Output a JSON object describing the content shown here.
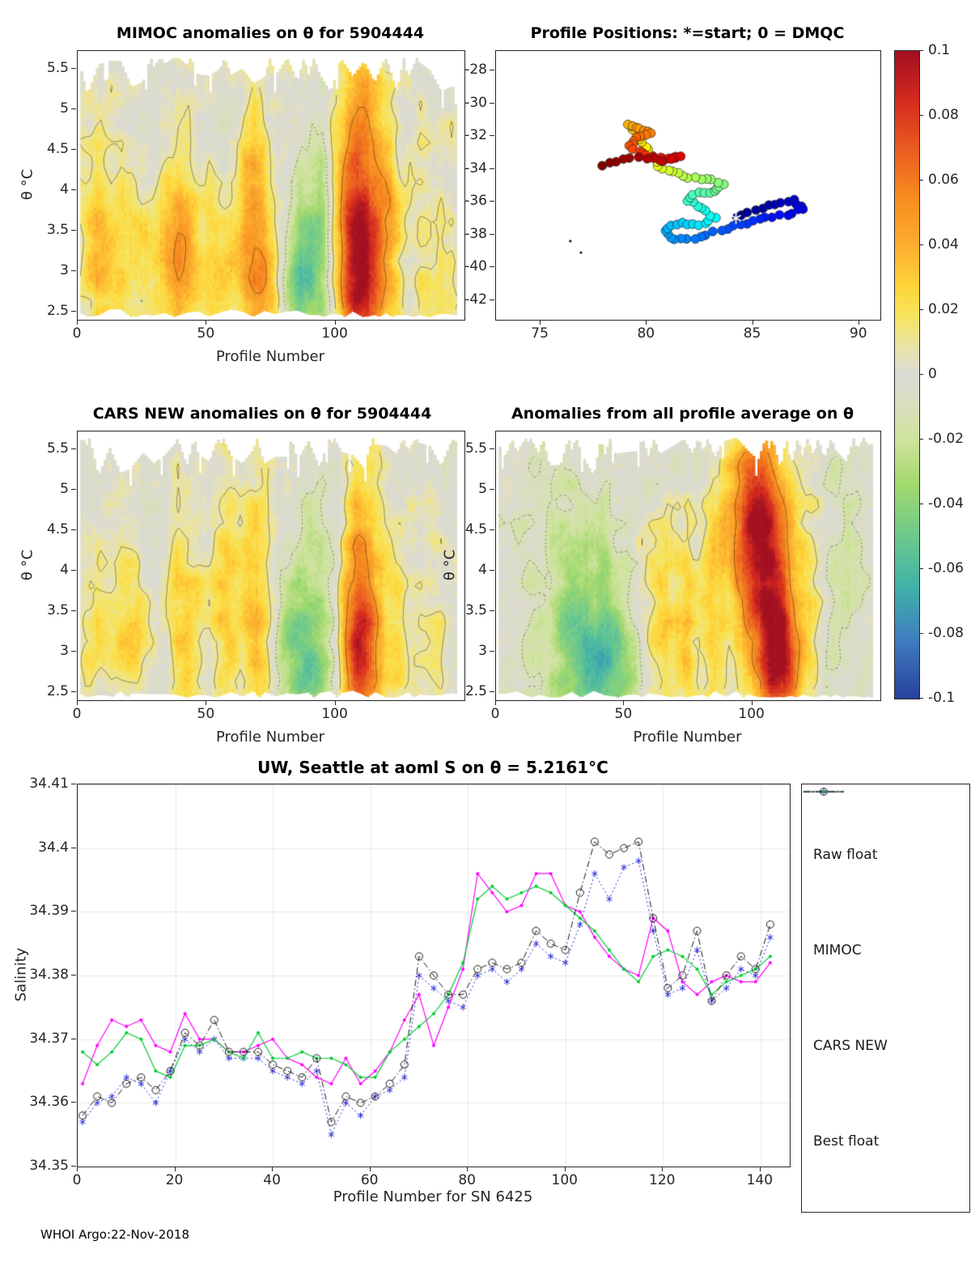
{
  "figure": {
    "footer": "WHOI Argo:22-Nov-2018",
    "background": "#ffffff"
  },
  "colorbar": {
    "min": -0.1,
    "max": 0.1,
    "tick_values": [
      0.1,
      0.08,
      0.06,
      0.04,
      0.02,
      0,
      -0.02,
      -0.04,
      -0.06,
      -0.08,
      -0.1
    ],
    "tick_labels": [
      "0.1",
      "0.08",
      "0.06",
      "0.04",
      "0.02",
      "0",
      "-0.02",
      "-0.04",
      "-0.06",
      "-0.08",
      "-0.1"
    ]
  },
  "colormap_stops": [
    [
      -0.1,
      "#27419b"
    ],
    [
      -0.082,
      "#3f7cc0"
    ],
    [
      -0.066,
      "#3fb1a9"
    ],
    [
      -0.05,
      "#6cc98d"
    ],
    [
      -0.034,
      "#a2d96d"
    ],
    [
      -0.02,
      "#cfe39c"
    ],
    [
      -0.008,
      "#dadec2"
    ],
    [
      0.0,
      "#dadad6"
    ],
    [
      0.008,
      "#e8e3ae"
    ],
    [
      0.018,
      "#f6e460"
    ],
    [
      0.027,
      "#fed63a"
    ],
    [
      0.04,
      "#fcae2f"
    ],
    [
      0.055,
      "#f78c1f"
    ],
    [
      0.07,
      "#ea5c20"
    ],
    [
      0.085,
      "#d42a1e"
    ],
    [
      0.1,
      "#a31021"
    ]
  ],
  "chart_data": [
    {
      "type": "heatmap",
      "title": "MIMOC anomalies on θ  for 5904444",
      "xlabel": "Profile Number",
      "ylabel": "θ °C",
      "xlim": [
        0,
        150
      ],
      "ylim": [
        2.4,
        5.72
      ],
      "zlim": [
        -0.1,
        0.1
      ],
      "x_range": [
        1,
        147
      ],
      "xticks": {
        "values": [
          0,
          50,
          100
        ],
        "labels": [
          "0",
          "50",
          "100"
        ]
      },
      "yticks": {
        "values": [
          2.5,
          3,
          3.5,
          4,
          4.5,
          5,
          5.5
        ],
        "labels": [
          "2.5",
          "3",
          "3.5",
          "4",
          "4.5",
          "5",
          "5.5"
        ]
      },
      "base": 0.004,
      "seed": 7,
      "noise_amp": 0.011,
      "col_amp": 0.006,
      "blobs": [
        [
          20,
          3.1,
          9,
          0.8,
          0.022
        ],
        [
          8,
          3.3,
          4,
          0.8,
          0.02
        ],
        [
          40,
          3.3,
          5,
          0.9,
          0.045
        ],
        [
          55,
          3.0,
          4,
          0.7,
          0.02
        ],
        [
          68,
          3.4,
          5,
          1.1,
          0.05
        ],
        [
          75,
          2.8,
          4,
          0.5,
          0.035
        ],
        [
          88,
          2.95,
          9,
          0.75,
          -0.052
        ],
        [
          95,
          4.2,
          6,
          0.9,
          -0.02
        ],
        [
          108,
          3.8,
          6,
          1.3,
          0.075
        ],
        [
          109,
          2.9,
          6,
          0.6,
          0.05
        ],
        [
          120,
          3.6,
          4,
          0.9,
          0.028
        ],
        [
          135,
          3.2,
          5,
          0.8,
          0.012
        ],
        [
          30,
          4.8,
          8,
          0.5,
          -0.012
        ],
        [
          60,
          5.0,
          10,
          0.5,
          -0.01
        ]
      ],
      "contour_solid": [
        0.012,
        0.05
      ],
      "contour_dotted": [
        -0.012
      ]
    },
    {
      "type": "scatter",
      "title": "Profile Positions: *=start; 0 = DMQC",
      "xlim": [
        72.9,
        91.0
      ],
      "ylim": [
        -43.2,
        -26.8
      ],
      "xticks": {
        "values": [
          75,
          80,
          85,
          90
        ],
        "labels": [
          "75",
          "80",
          "85",
          "90"
        ]
      },
      "yticks": {
        "values": [
          -28,
          -30,
          -32,
          -34,
          -36,
          -38,
          -40,
          -42
        ],
        "labels": [
          "-28",
          "-30",
          "-32",
          "-34",
          "-36",
          "-38",
          "-40",
          "-42"
        ]
      },
      "start_label": "*",
      "points_per_segment": 3,
      "marker_radius": 5.5,
      "seed": 5,
      "extra_marks": [
        [
          76.4,
          -38.4
        ],
        [
          76.9,
          -39.1
        ]
      ],
      "track": {
        "lon": [
          84.2,
          85.1,
          86.0,
          86.9,
          87.4,
          86.6,
          85.6,
          84.7,
          83.8,
          82.8,
          81.9,
          81.1,
          80.9,
          81.6,
          82.5,
          83.2,
          82.6,
          81.9,
          82.4,
          83.2,
          83.6,
          82.8,
          82.0,
          81.2,
          80.6,
          80.1,
          79.8,
          79.5,
          79.1,
          79.7,
          80.2,
          79.5,
          79.2,
          79.8,
          80.4,
          81.1,
          81.6,
          80.8,
          80.0,
          78.9,
          77.9
        ],
        "lat": [
          -37.0,
          -36.5,
          -36.1,
          -35.9,
          -36.4,
          -36.8,
          -37.0,
          -37.3,
          -37.6,
          -38.0,
          -38.3,
          -38.2,
          -37.6,
          -37.3,
          -37.4,
          -37.0,
          -36.4,
          -35.9,
          -35.4,
          -35.4,
          -34.9,
          -34.6,
          -34.5,
          -34.2,
          -33.8,
          -33.1,
          -32.4,
          -31.7,
          -31.3,
          -31.5,
          -31.8,
          -32.1,
          -32.6,
          -33.0,
          -33.3,
          -33.4,
          -33.2,
          -33.5,
          -33.3,
          -33.4,
          -33.8
        ]
      }
    },
    {
      "type": "heatmap",
      "title": "CARS NEW anomalies on θ for 5904444",
      "xlabel": "Profile Number",
      "ylabel": "θ °C",
      "xlim": [
        0,
        150
      ],
      "ylim": [
        2.4,
        5.72
      ],
      "zlim": [
        -0.1,
        0.1
      ],
      "x_range": [
        1,
        147
      ],
      "xticks": {
        "values": [
          0,
          50,
          100
        ],
        "labels": [
          "0",
          "50",
          "100"
        ]
      },
      "yticks": {
        "values": [
          2.5,
          3,
          3.5,
          4,
          4.5,
          5,
          5.5
        ],
        "labels": [
          "2.5",
          "3",
          "3.5",
          "4",
          "4.5",
          "5",
          "5.5"
        ]
      },
      "base": -0.002,
      "seed": 13,
      "noise_amp": 0.011,
      "col_amp": 0.006,
      "blobs": [
        [
          6,
          3.2,
          4,
          0.8,
          0.02
        ],
        [
          20,
          3.3,
          6,
          0.9,
          0.028
        ],
        [
          42,
          3.3,
          5,
          1.0,
          0.032
        ],
        [
          57,
          3.6,
          4,
          1.2,
          0.03
        ],
        [
          70,
          3.4,
          5,
          1.1,
          0.042
        ],
        [
          88,
          2.95,
          9,
          0.8,
          -0.05
        ],
        [
          100,
          4.5,
          8,
          0.8,
          -0.018
        ],
        [
          109,
          3.7,
          6,
          1.3,
          0.065
        ],
        [
          110,
          2.9,
          5,
          0.6,
          0.045
        ],
        [
          125,
          3.1,
          5,
          0.9,
          0.018
        ],
        [
          140,
          3.4,
          4,
          0.8,
          0.012
        ]
      ],
      "contour_solid": [
        0.012,
        0.05
      ],
      "contour_dotted": [
        -0.012
      ]
    },
    {
      "type": "heatmap",
      "title": "Anomalies from all profile average on θ",
      "xlabel": "Profile Number",
      "ylabel": "θ °C",
      "xlim": [
        0,
        150
      ],
      "ylim": [
        2.4,
        5.72
      ],
      "zlim": [
        -0.1,
        0.1
      ],
      "x_range": [
        1,
        147
      ],
      "xticks": {
        "values": [
          0,
          50,
          100
        ],
        "labels": [
          "0",
          "50",
          "100"
        ]
      },
      "yticks": {
        "values": [
          2.5,
          3,
          3.5,
          4,
          4.5,
          5,
          5.5
        ],
        "labels": [
          "2.5",
          "3",
          "3.5",
          "4",
          "4.5",
          "5",
          "5.5"
        ]
      },
      "base": -0.006,
      "seed": 29,
      "noise_amp": 0.012,
      "col_amp": 0.007,
      "blobs": [
        [
          30,
          3.4,
          9,
          1.0,
          -0.022
        ],
        [
          45,
          2.95,
          11,
          0.7,
          -0.045
        ],
        [
          58,
          3.4,
          5,
          1.0,
          0.025
        ],
        [
          66,
          3.2,
          4,
          0.9,
          0.032
        ],
        [
          75,
          3.3,
          4,
          1.0,
          0.03
        ],
        [
          85,
          3.6,
          4,
          1.3,
          0.028
        ],
        [
          98,
          4.6,
          7,
          0.9,
          0.04
        ],
        [
          104,
          4.8,
          7,
          0.8,
          0.05
        ],
        [
          107,
          3.3,
          7,
          1.1,
          0.07
        ],
        [
          112,
          2.9,
          5,
          0.6,
          0.055
        ],
        [
          122,
          3.8,
          4,
          1.2,
          0.02
        ],
        [
          135,
          4.0,
          6,
          1.5,
          -0.005
        ]
      ],
      "contour_solid": [
        0.012,
        0.05
      ],
      "contour_dotted": [
        -0.012
      ]
    },
    {
      "type": "line",
      "title": "UW, Seattle at aoml S on θ = 5.2161°C",
      "xlabel": "Profile Number for SN 6425",
      "ylabel": "Salinity",
      "xlim": [
        0,
        146
      ],
      "ylim": [
        34.35,
        34.41
      ],
      "grid": true,
      "xticks": {
        "values": [
          0,
          20,
          40,
          60,
          80,
          100,
          120,
          140
        ],
        "labels": [
          "0",
          "20",
          "40",
          "60",
          "80",
          "100",
          "120",
          "140"
        ]
      },
      "yticks": {
        "values": [
          34.35,
          34.36,
          34.37,
          34.38,
          34.39,
          34.4,
          34.41
        ],
        "labels": [
          "34.35",
          "34.36",
          "34.37",
          "34.38",
          "34.39",
          "34.4",
          "34.41"
        ]
      },
      "x": [
        1,
        4,
        7,
        10,
        13,
        16,
        19,
        22,
        25,
        28,
        31,
        34,
        37,
        40,
        43,
        46,
        49,
        52,
        55,
        58,
        61,
        64,
        67,
        70,
        73,
        76,
        79,
        82,
        85,
        88,
        91,
        94,
        97,
        100,
        103,
        106,
        109,
        112,
        115,
        118,
        121,
        124,
        127,
        130,
        133,
        136,
        139,
        142
      ],
      "series": [
        {
          "name": "Raw float",
          "color": "#2323d6",
          "line": "dotted",
          "marker": "asterisk",
          "y": [
            34.357,
            34.36,
            34.361,
            34.364,
            34.363,
            34.36,
            34.365,
            34.37,
            34.368,
            34.37,
            34.367,
            34.367,
            34.367,
            34.365,
            34.364,
            34.363,
            34.365,
            34.355,
            34.36,
            34.358,
            34.361,
            34.362,
            34.364,
            34.38,
            34.378,
            34.376,
            34.375,
            34.38,
            34.381,
            34.379,
            34.381,
            34.385,
            34.383,
            34.382,
            34.388,
            34.396,
            34.392,
            34.397,
            34.398,
            34.387,
            34.377,
            34.378,
            34.384,
            34.376,
            34.378,
            34.381,
            34.38,
            34.386
          ]
        },
        {
          "name": "MIMOC",
          "color": "#ff00ff",
          "line": "solid",
          "marker": "dot",
          "y": [
            34.363,
            34.369,
            34.373,
            34.372,
            34.373,
            34.369,
            34.368,
            34.374,
            34.37,
            34.37,
            34.368,
            34.368,
            34.369,
            34.37,
            34.367,
            34.366,
            34.364,
            34.363,
            34.367,
            34.363,
            34.365,
            34.368,
            34.373,
            34.377,
            34.369,
            34.375,
            34.381,
            34.396,
            34.393,
            34.39,
            34.391,
            34.396,
            34.396,
            34.391,
            34.39,
            34.386,
            34.383,
            34.381,
            34.38,
            34.389,
            34.387,
            34.379,
            34.377,
            34.379,
            34.38,
            34.379,
            34.379,
            34.382
          ]
        },
        {
          "name": "CARS NEW",
          "color": "#00cc33",
          "line": "solid",
          "marker": "dot",
          "y": [
            34.368,
            34.366,
            34.368,
            34.371,
            34.37,
            34.365,
            34.364,
            34.369,
            34.369,
            34.37,
            34.368,
            34.367,
            34.371,
            34.367,
            34.367,
            34.368,
            34.367,
            34.367,
            34.366,
            34.364,
            34.364,
            34.368,
            34.37,
            34.372,
            34.374,
            34.377,
            34.382,
            34.392,
            34.394,
            34.392,
            34.393,
            34.394,
            34.393,
            34.391,
            34.389,
            34.387,
            34.384,
            34.381,
            34.379,
            34.383,
            34.384,
            34.383,
            34.381,
            34.377,
            34.379,
            34.38,
            34.381,
            34.383
          ]
        },
        {
          "name": "Best float",
          "color": "#151515",
          "line": "dashdot",
          "marker": "circle",
          "y": [
            34.358,
            34.361,
            34.36,
            34.363,
            34.364,
            34.362,
            34.365,
            34.371,
            34.369,
            34.373,
            34.368,
            34.368,
            34.368,
            34.366,
            34.365,
            34.364,
            34.367,
            34.357,
            34.361,
            34.36,
            34.361,
            34.363,
            34.366,
            34.383,
            34.38,
            34.377,
            34.377,
            34.381,
            34.382,
            34.381,
            34.382,
            34.387,
            34.385,
            34.384,
            34.393,
            34.401,
            34.399,
            34.4,
            34.401,
            34.389,
            34.378,
            34.38,
            34.387,
            34.376,
            34.38,
            34.383,
            34.381,
            34.388
          ]
        }
      ]
    }
  ]
}
